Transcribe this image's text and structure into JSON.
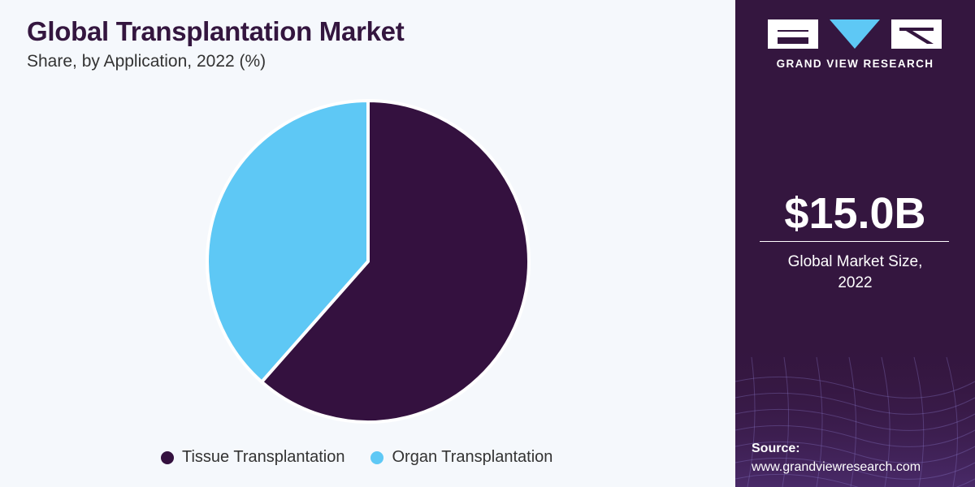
{
  "header": {
    "title": "Global Transplantation Market",
    "subtitle": "Share, by Application, 2022 (%)"
  },
  "chart_data": {
    "type": "pie",
    "title": "Global Transplantation Market",
    "subtitle": "Share, by Application, 2022 (%)",
    "categories": [
      "Tissue Transplantation",
      "Organ Transplantation"
    ],
    "values": [
      61.5,
      38.5
    ],
    "colors": [
      "#34113f",
      "#5ec8f5"
    ],
    "legend_position": "bottom"
  },
  "sidebar": {
    "brand": "GRAND VIEW RESEARCH",
    "market_value": "$15.0B",
    "market_caption_line1": "Global Market Size,",
    "market_caption_line2": "2022",
    "source_label": "Source:",
    "source_url": "www.grandviewresearch.com",
    "background_color": "#34163f"
  }
}
